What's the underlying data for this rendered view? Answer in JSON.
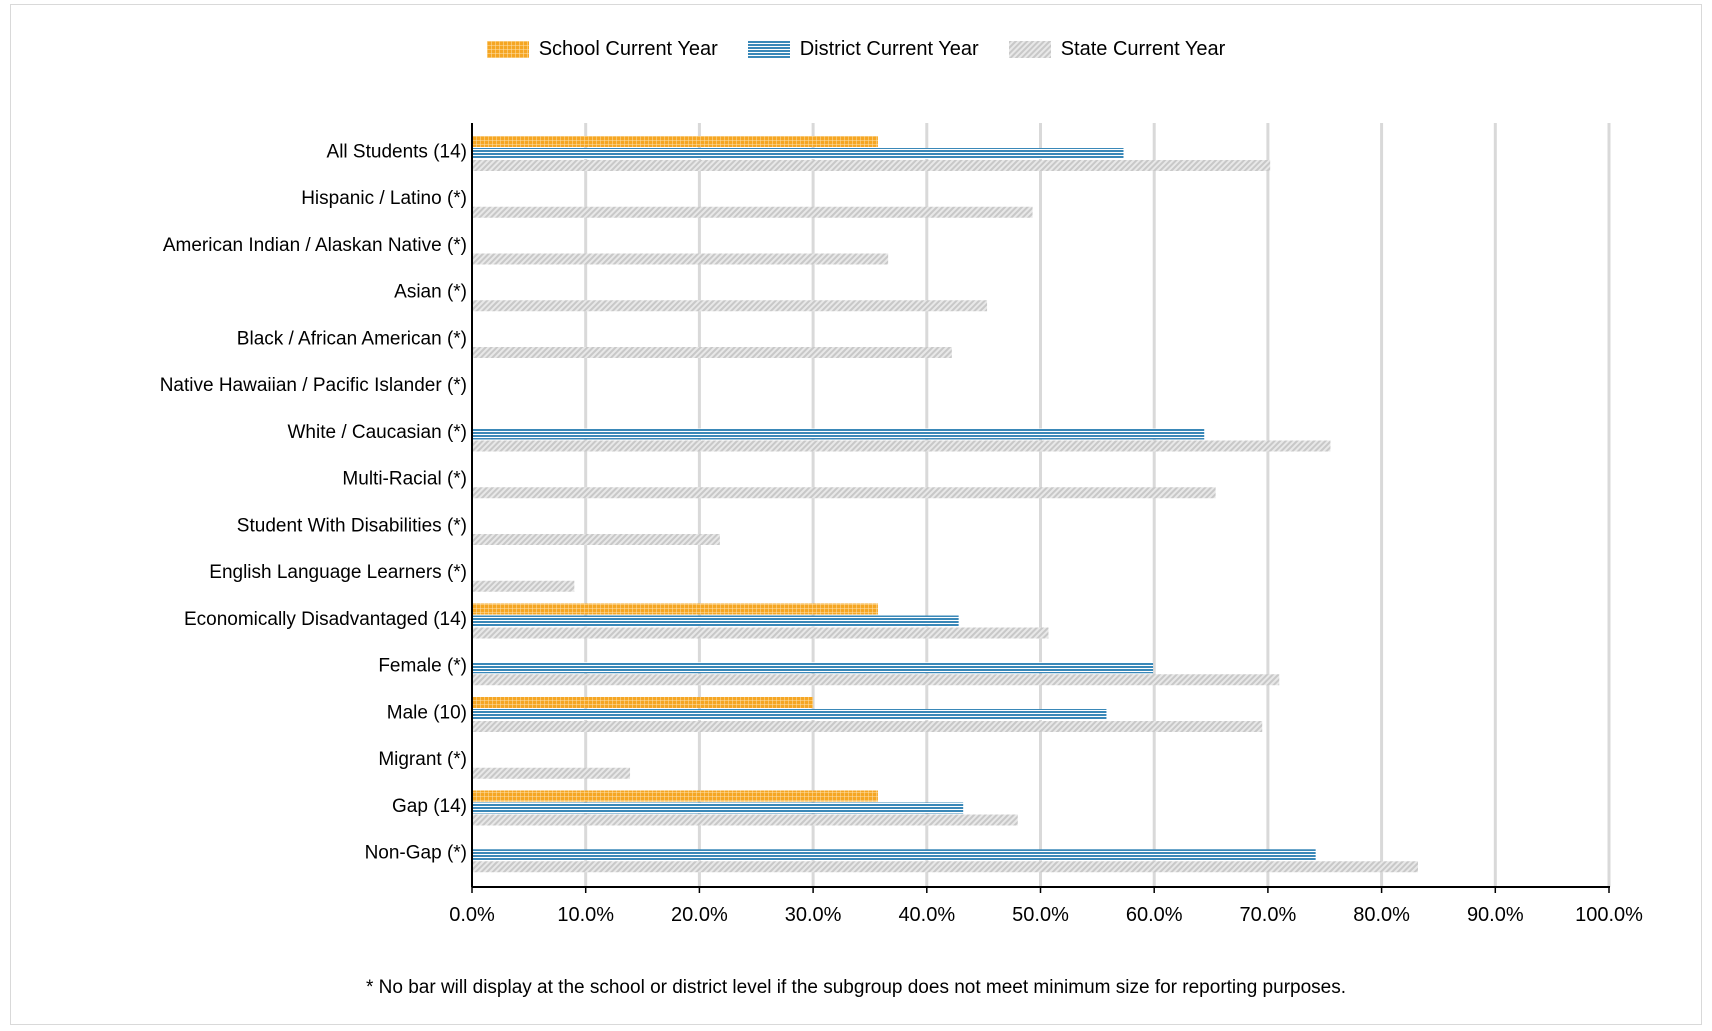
{
  "legend": [
    {
      "name": "School Current Year",
      "color": "#f5a623",
      "pattern": "grid"
    },
    {
      "name": "District Current Year",
      "color": "#3a88b8",
      "pattern": "horizontal-lines"
    },
    {
      "name": "State Current Year",
      "color": "#c8c8c8",
      "pattern": "diagonal-lines"
    }
  ],
  "footnote": "* No bar will display at the school or district level if the subgroup does not meet minimum size for reporting purposes.",
  "chart_data": {
    "type": "bar",
    "orientation": "horizontal",
    "categories": [
      "All Students (14)",
      "Hispanic / Latino (*)",
      "American Indian / Alaskan Native (*)",
      "Asian (*)",
      "Black / African American (*)",
      "Native Hawaiian / Pacific Islander (*)",
      "White / Caucasian (*)",
      "Multi-Racial (*)",
      "Student With Disabilities (*)",
      "English Language Learners (*)",
      "Economically Disadvantaged (14)",
      "Female (*)",
      "Male (10)",
      "Migrant (*)",
      "Gap (14)",
      "Non-Gap (*)"
    ],
    "series": [
      {
        "name": "School Current Year",
        "values": [
          35.7,
          null,
          null,
          null,
          null,
          null,
          null,
          null,
          null,
          null,
          35.7,
          null,
          30.0,
          null,
          35.7,
          null
        ]
      },
      {
        "name": "District Current Year",
        "values": [
          57.3,
          null,
          null,
          null,
          null,
          null,
          64.4,
          null,
          null,
          null,
          42.8,
          59.9,
          55.8,
          null,
          43.2,
          74.2
        ]
      },
      {
        "name": "State Current Year",
        "values": [
          70.2,
          49.3,
          36.6,
          45.3,
          42.2,
          null,
          75.5,
          65.4,
          21.8,
          9.0,
          50.7,
          71.0,
          69.5,
          13.9,
          48.0,
          83.2
        ]
      }
    ],
    "xlim": [
      0,
      100
    ],
    "ticks": [
      "0.0%",
      "10.0%",
      "20.0%",
      "30.0%",
      "40.0%",
      "50.0%",
      "60.0%",
      "70.0%",
      "80.0%",
      "90.0%",
      "100.0%"
    ],
    "grid": true,
    "legend_position": "top"
  }
}
